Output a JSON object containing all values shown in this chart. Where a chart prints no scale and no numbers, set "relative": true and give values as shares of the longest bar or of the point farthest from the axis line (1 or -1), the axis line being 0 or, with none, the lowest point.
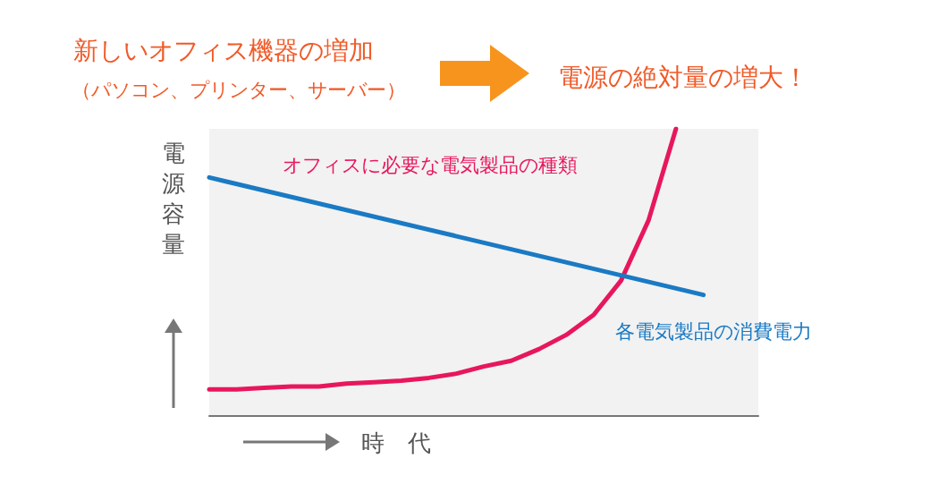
{
  "chart_data": {
    "type": "line",
    "title": "新しいオフィス機器の増加",
    "subtitle": "（パソコン、プリンター、サーバー）",
    "annotations": [
      "電源の絶対量の増大！"
    ],
    "xlabel": "時　代",
    "ylabel": "電源容量",
    "relative": true,
    "grid": false,
    "legend": false,
    "marker": "none",
    "line_style": "solid",
    "categories": [
      null,
      null,
      null,
      null,
      null,
      null,
      null,
      null,
      null,
      null,
      null,
      null,
      null,
      null,
      null,
      null,
      null,
      null,
      null,
      null,
      null
    ],
    "series": [
      {
        "name": "オフィスに必要な電気製品の種類",
        "color": "#e8175d",
        "values": [
          0.09,
          0.09,
          0.095,
          0.1,
          0.1,
          0.11,
          0.115,
          0.12,
          0.13,
          0.145,
          0.17,
          0.19,
          0.23,
          0.28,
          0.35,
          0.47,
          0.68,
          1.0,
          null,
          null,
          null
        ]
      },
      {
        "name": "各電気製品の消費電力",
        "color": "#1a7ac4",
        "values": [
          0.83,
          null,
          null,
          null,
          null,
          null,
          null,
          null,
          null,
          null,
          null,
          null,
          null,
          null,
          null,
          null,
          null,
          null,
          0.42,
          null,
          null
        ]
      }
    ]
  }
}
